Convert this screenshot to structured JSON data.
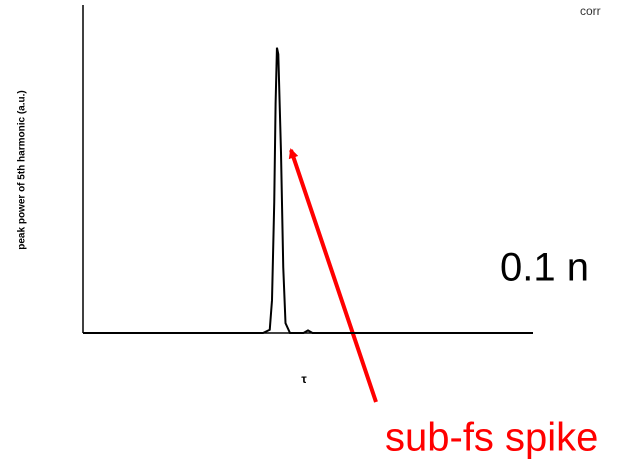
{
  "chart_data": {
    "type": "line",
    "y_label": "peak power of 5th harmonic (a.u.)",
    "x_label": "τ",
    "annotations": [
      "corr",
      "0.1 n",
      "sub-fs spike"
    ],
    "x": [
      0,
      0.4,
      0.415,
      0.42,
      0.425,
      0.428,
      0.431,
      0.434,
      0.44,
      0.445,
      0.45,
      0.46,
      0.49,
      0.5,
      0.51,
      1.0
    ],
    "values": [
      0,
      0,
      0.01,
      0.1,
      0.4,
      0.7,
      0.87,
      0.85,
      0.55,
      0.2,
      0.03,
      0,
      0,
      0.008,
      0,
      0
    ],
    "color": "#000000",
    "xlim": [
      0,
      1
    ],
    "ylim": [
      0,
      1
    ]
  }
}
